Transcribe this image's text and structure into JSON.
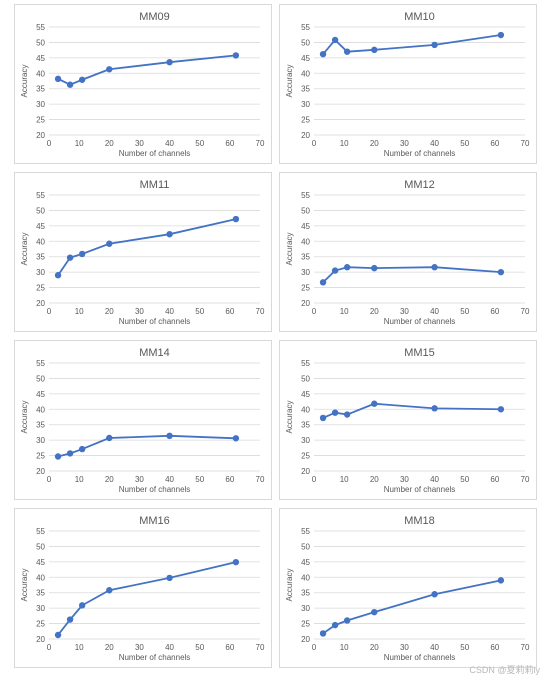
{
  "watermark": "CSDN @夏莉莉iy",
  "colors": {
    "series": "#4472C4",
    "grid": "#d9d9d9",
    "text": "#595959"
  },
  "chart_data": [
    {
      "type": "line",
      "title": "MM09",
      "xlabel": "Number of channels",
      "ylabel": "Accuracy",
      "xlim": [
        0,
        70
      ],
      "ylim": [
        20,
        55
      ],
      "xticks": [
        0,
        10,
        20,
        30,
        40,
        50,
        60,
        70
      ],
      "yticks": [
        20,
        25,
        30,
        35,
        40,
        45,
        50,
        55
      ],
      "grid": "horizontal",
      "x": [
        3,
        7,
        11,
        20,
        40,
        62
      ],
      "y": [
        38.2,
        36.3,
        37.9,
        41.3,
        43.6,
        45.8
      ]
    },
    {
      "type": "line",
      "title": "MM10",
      "xlabel": "Number of channels",
      "ylabel": "Accuracy",
      "xlim": [
        0,
        70
      ],
      "ylim": [
        20,
        55
      ],
      "xticks": [
        0,
        10,
        20,
        30,
        40,
        50,
        60,
        70
      ],
      "yticks": [
        20,
        25,
        30,
        35,
        40,
        45,
        50,
        55
      ],
      "grid": "horizontal",
      "x": [
        3,
        7,
        11,
        20,
        40,
        62
      ],
      "y": [
        46.2,
        50.8,
        47.0,
        47.6,
        49.2,
        52.4
      ]
    },
    {
      "type": "line",
      "title": "MM11",
      "xlabel": "Number of channels",
      "ylabel": "Accuracy",
      "xlim": [
        0,
        70
      ],
      "ylim": [
        20,
        55
      ],
      "xticks": [
        0,
        10,
        20,
        30,
        40,
        50,
        60,
        70
      ],
      "yticks": [
        20,
        25,
        30,
        35,
        40,
        45,
        50,
        55
      ],
      "grid": "horizontal",
      "x": [
        3,
        7,
        11,
        20,
        40,
        62
      ],
      "y": [
        29.0,
        34.7,
        35.9,
        39.2,
        42.3,
        47.2
      ]
    },
    {
      "type": "line",
      "title": "MM12",
      "xlabel": "Number of channels",
      "ylabel": "Accuracy",
      "xlim": [
        0,
        70
      ],
      "ylim": [
        20,
        55
      ],
      "xticks": [
        0,
        10,
        20,
        30,
        40,
        50,
        60,
        70
      ],
      "yticks": [
        20,
        25,
        30,
        35,
        40,
        45,
        50,
        55
      ],
      "grid": "horizontal",
      "x": [
        3,
        7,
        11,
        20,
        40,
        62
      ],
      "y": [
        26.7,
        30.5,
        31.6,
        31.3,
        31.6,
        30.0
      ]
    },
    {
      "type": "line",
      "title": "MM14",
      "xlabel": "Number of channels",
      "ylabel": "Accuracy",
      "xlim": [
        0,
        70
      ],
      "ylim": [
        20,
        55
      ],
      "xticks": [
        0,
        10,
        20,
        30,
        40,
        50,
        60,
        70
      ],
      "yticks": [
        20,
        25,
        30,
        35,
        40,
        45,
        50,
        55
      ],
      "grid": "horizontal",
      "x": [
        3,
        7,
        11,
        20,
        40,
        62
      ],
      "y": [
        24.7,
        25.7,
        27.1,
        30.7,
        31.4,
        30.6
      ]
    },
    {
      "type": "line",
      "title": "MM15",
      "xlabel": "Number of channels",
      "ylabel": "Accuracy",
      "xlim": [
        0,
        70
      ],
      "ylim": [
        20,
        55
      ],
      "xticks": [
        0,
        10,
        20,
        30,
        40,
        50,
        60,
        70
      ],
      "yticks": [
        20,
        25,
        30,
        35,
        40,
        45,
        50,
        55
      ],
      "grid": "horizontal",
      "x": [
        3,
        7,
        11,
        20,
        40,
        62
      ],
      "y": [
        37.2,
        38.9,
        38.3,
        41.8,
        40.3,
        40.0
      ]
    },
    {
      "type": "line",
      "title": "MM16",
      "xlabel": "Number of channels",
      "ylabel": "Accuracy",
      "xlim": [
        0,
        70
      ],
      "ylim": [
        20,
        55
      ],
      "xticks": [
        0,
        10,
        20,
        30,
        40,
        50,
        60,
        70
      ],
      "yticks": [
        20,
        25,
        30,
        35,
        40,
        45,
        50,
        55
      ],
      "grid": "horizontal",
      "x": [
        3,
        7,
        11,
        20,
        40,
        62
      ],
      "y": [
        21.3,
        26.3,
        30.9,
        35.8,
        39.8,
        44.9
      ]
    },
    {
      "type": "line",
      "title": "MM18",
      "xlabel": "Number of channels",
      "ylabel": "Accuracy",
      "xlim": [
        0,
        70
      ],
      "ylim": [
        20,
        55
      ],
      "xticks": [
        0,
        10,
        20,
        30,
        40,
        50,
        60,
        70
      ],
      "yticks": [
        20,
        25,
        30,
        35,
        40,
        45,
        50,
        55
      ],
      "grid": "horizontal",
      "x": [
        3,
        7,
        11,
        20,
        40,
        62
      ],
      "y": [
        21.8,
        24.5,
        26.0,
        28.7,
        34.5,
        39.0
      ]
    }
  ]
}
